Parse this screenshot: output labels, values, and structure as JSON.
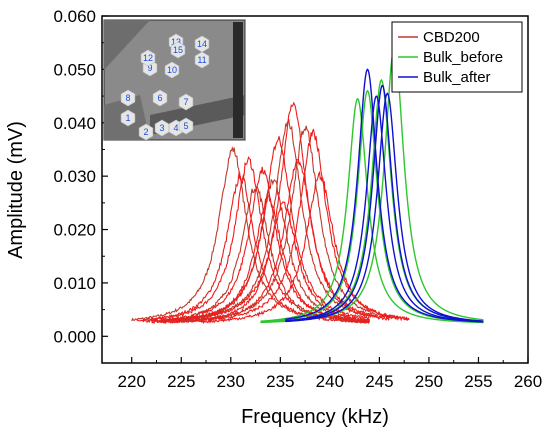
{
  "chart_data": {
    "type": "line",
    "xlabel": "Frequency (kHz)",
    "ylabel": "Amplitude (mV)",
    "xlim": [
      217,
      260
    ],
    "ylim": [
      -0.005,
      0.06
    ],
    "xticks": [
      "220",
      "225",
      "230",
      "235",
      "240",
      "245",
      "250",
      "255",
      "260"
    ],
    "yticks": [
      "0.000",
      "0.010",
      "0.020",
      "0.030",
      "0.040",
      "0.050",
      "0.060"
    ],
    "legend": {
      "placement": "top-right",
      "entries": [
        "CBD200",
        "Bulk_before",
        "Bulk_after"
      ]
    },
    "colors": {
      "CBD200": "#c0392b",
      "CBD200_bright": "#ee1c1c",
      "Bulk_before": "#2fc62f",
      "Bulk_after": "#1010d0"
    },
    "series": [
      {
        "name": "CBD200",
        "curves": [
          {
            "f0": 230.2,
            "peak": 0.035,
            "fmin": 220.0,
            "fmax": 244.0
          },
          {
            "f0": 231.0,
            "peak": 0.03,
            "fmin": 220.5,
            "fmax": 244.0
          },
          {
            "f0": 231.8,
            "peak": 0.033,
            "fmin": 221.0,
            "fmax": 244.0
          },
          {
            "f0": 232.5,
            "peak": 0.028,
            "fmin": 221.5,
            "fmax": 244.0
          },
          {
            "f0": 233.2,
            "peak": 0.031,
            "fmin": 222.0,
            "fmax": 244.0
          },
          {
            "f0": 233.8,
            "peak": 0.026,
            "fmin": 222.0,
            "fmax": 244.0
          },
          {
            "f0": 234.3,
            "peak": 0.029,
            "fmin": 222.5,
            "fmax": 244.0
          },
          {
            "f0": 234.8,
            "peak": 0.037,
            "fmin": 223.0,
            "fmax": 244.0
          },
          {
            "f0": 235.3,
            "peak": 0.025,
            "fmin": 223.0,
            "fmax": 244.0
          },
          {
            "f0": 235.8,
            "peak": 0.04,
            "fmin": 224.0,
            "fmax": 244.0
          },
          {
            "f0": 236.3,
            "peak": 0.0435,
            "fmin": 224.0,
            "fmax": 246.0
          },
          {
            "f0": 236.8,
            "peak": 0.033,
            "fmin": 224.5,
            "fmax": 246.0
          },
          {
            "f0": 237.5,
            "peak": 0.039,
            "fmin": 225.0,
            "fmax": 247.0
          },
          {
            "f0": 238.3,
            "peak": 0.038,
            "fmin": 226.0,
            "fmax": 248.0
          },
          {
            "f0": 239.0,
            "peak": 0.03,
            "fmin": 227.0,
            "fmax": 248.0
          }
        ]
      },
      {
        "name": "Bulk_before",
        "curves": [
          {
            "f0": 242.8,
            "peak": 0.0445,
            "fmin": 233.0,
            "fmax": 255.5
          },
          {
            "f0": 243.8,
            "peak": 0.046,
            "fmin": 233.0,
            "fmax": 255.5
          },
          {
            "f0": 245.2,
            "peak": 0.048,
            "fmin": 233.0,
            "fmax": 255.5
          },
          {
            "f0": 246.5,
            "peak": 0.054,
            "fmin": 233.0,
            "fmax": 255.5
          }
        ]
      },
      {
        "name": "Bulk_after",
        "curves": [
          {
            "f0": 243.8,
            "peak": 0.05,
            "fmin": 235.5,
            "fmax": 255.5
          },
          {
            "f0": 244.7,
            "peak": 0.045,
            "fmin": 235.5,
            "fmax": 255.5
          },
          {
            "f0": 245.3,
            "peak": 0.047,
            "fmin": 235.5,
            "fmax": 255.5
          },
          {
            "f0": 245.8,
            "peak": 0.0455,
            "fmin": 235.5,
            "fmax": 255.5
          }
        ]
      }
    ],
    "inset": {
      "description_labels": [
        "1",
        "2",
        "3",
        "4",
        "5",
        "6",
        "7",
        "8",
        "9",
        "10",
        "11",
        "12",
        "13",
        "14",
        "15"
      ]
    }
  }
}
